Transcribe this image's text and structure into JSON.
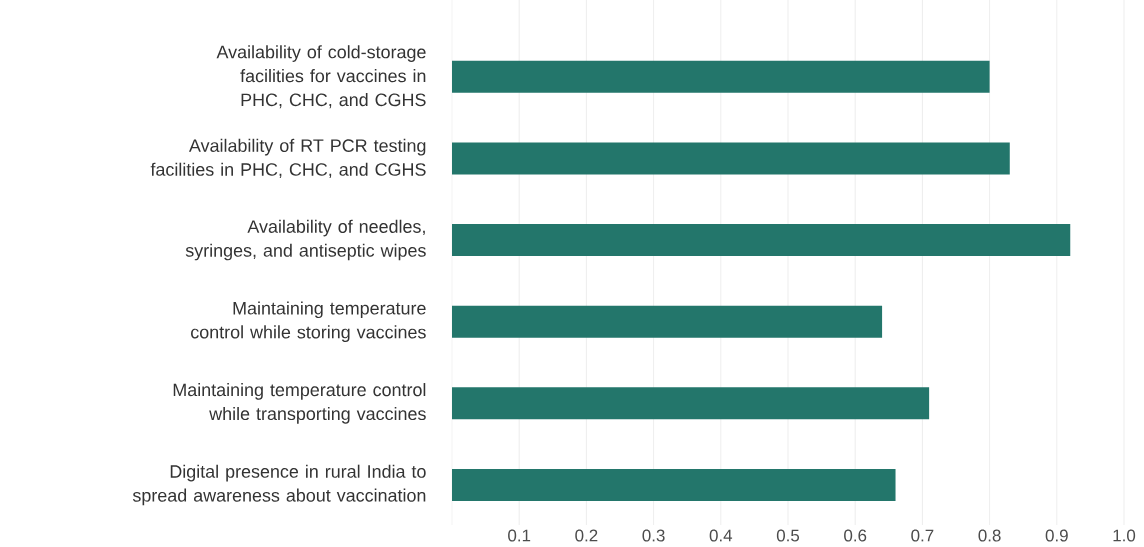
{
  "chart_data": {
    "type": "bar",
    "orientation": "horizontal",
    "categories": [
      "Availability of cold-storage facilities for vaccines in PHC, CHC, and CGHS",
      "Availability of RT PCR testing facilities in PHC, CHC, and CGHS",
      "Availability of needles, syringes, and antiseptic wipes",
      "Maintaining temperature control while storing vaccines",
      "Maintaining temperature control while transporting vaccines",
      "Digital presence in rural India to spread awareness about vaccination"
    ],
    "values": [
      0.8,
      0.83,
      0.92,
      0.64,
      0.71,
      0.66
    ],
    "color": "#23766b",
    "xlim": [
      0,
      1
    ],
    "xticks": [
      0.1,
      0.2,
      0.3,
      0.4,
      0.5,
      0.6,
      0.7,
      0.8,
      0.9,
      {
        "value": 1,
        "label": "1.0"
      }
    ],
    "grid": "x"
  }
}
